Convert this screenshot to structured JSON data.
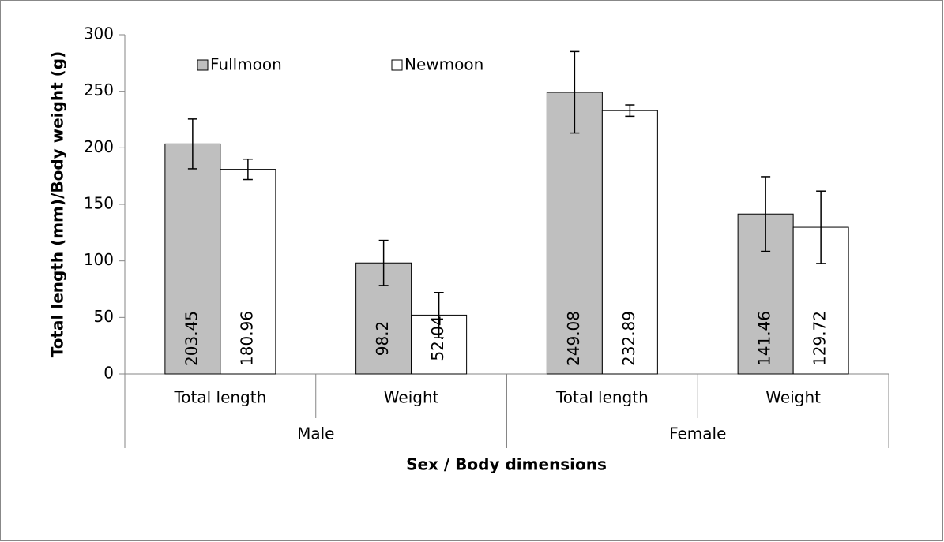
{
  "chart_data": {
    "type": "bar",
    "xlabel": "Sex / Body dimensions",
    "ylabel": "Total length (mm)/Body weight (g)",
    "categories": [
      "Total length",
      "Weight",
      "Total length",
      "Weight"
    ],
    "groups": [
      "Male",
      "Female"
    ],
    "series": [
      {
        "name": "Fullmoon",
        "color": "#bfbfbf",
        "values": [
          203.45,
          98.2,
          249.08,
          141.46
        ],
        "errors": [
          22,
          20,
          36,
          33
        ]
      },
      {
        "name": "Newmoon",
        "color": "#ffffff",
        "values": [
          180.96,
          52.04,
          232.89,
          129.72
        ],
        "errors": [
          9,
          20,
          5,
          32
        ]
      }
    ],
    "ylim": [
      0,
      300
    ],
    "yticks": [
      0,
      50,
      100,
      150,
      200,
      250,
      300
    ],
    "legend": "top"
  }
}
